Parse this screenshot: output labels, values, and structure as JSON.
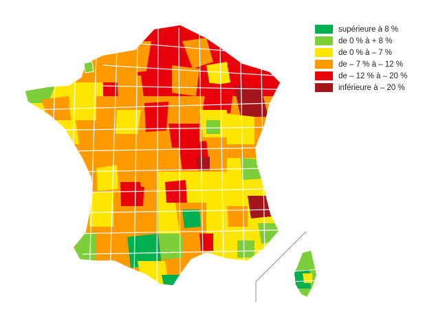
{
  "legend": {
    "items": [
      {
        "label": "supérieure à 8 %",
        "color": "#00b050"
      },
      {
        "label": "de 0 % à + 8 %",
        "color": "#7ccf3a"
      },
      {
        "label": "de 0 % à – 7 %",
        "color": "#ffe600"
      },
      {
        "label": "de – 7 % à – 12 %",
        "color": "#ff9900"
      },
      {
        "label": "de – 12 % à – 20 %",
        "color": "#e8000b"
      },
      {
        "label": "inférieure à – 20 %",
        "color": "#a3161b"
      }
    ]
  },
  "colors": {
    "border": "#ffffff",
    "inset_line": "#8a8a8a",
    "background": "#ffffff"
  }
}
